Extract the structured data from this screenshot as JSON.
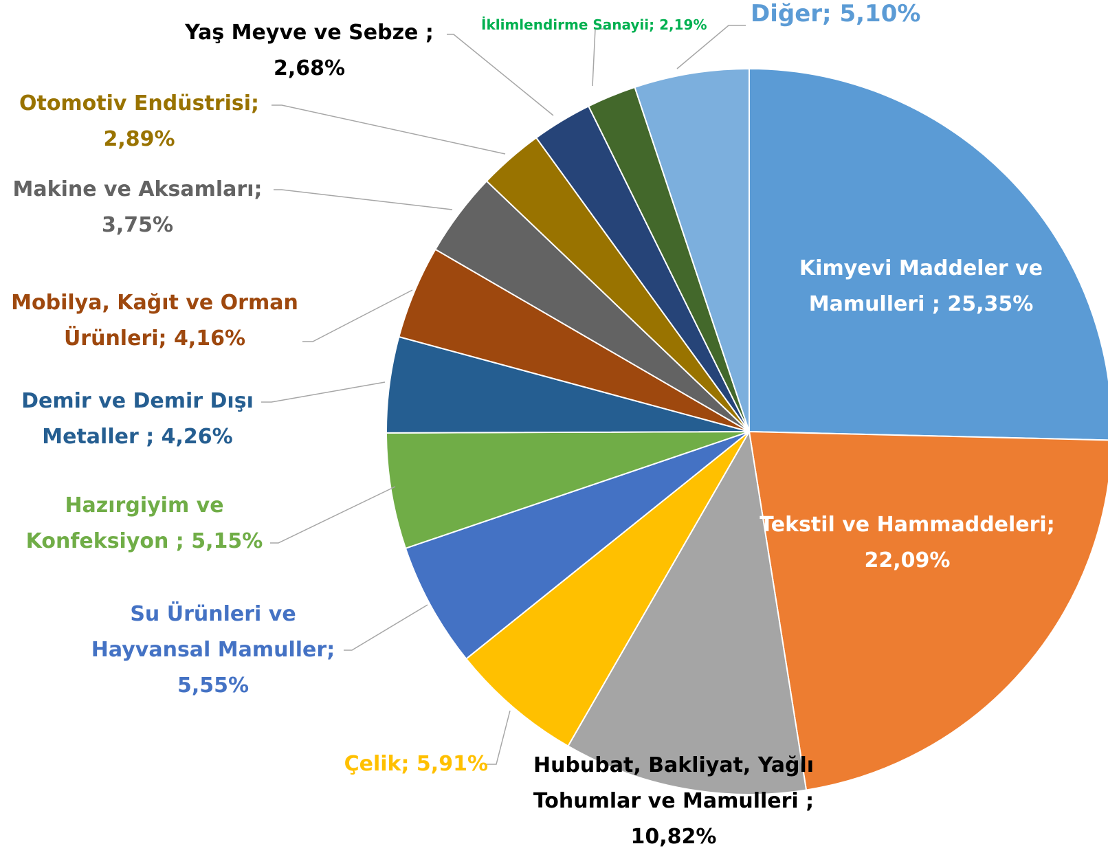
{
  "chart_data": {
    "type": "pie",
    "categories": [
      "Kimyevi Maddeler ve Mamulleri  ;",
      "Tekstil ve Hammaddeleri;",
      "Hububat, Bakliyat, Yağlı Tohumlar ve Mamulleri ;",
      "Çelik;",
      "Su Ürünleri ve Hayvansal Mamuller;",
      "Hazırgiyim ve Konfeksiyon ;",
      "Demir ve Demir Dışı Metaller ;",
      "Mobilya, Kağıt ve Orman Ürünleri;",
      "Makine ve Aksamları;",
      "Otomotiv Endüstrisi;",
      "Yaş Meyve ve Sebze  ;",
      "İklimlendirme Sanayii;",
      "Diğer;"
    ],
    "values": [
      25.35,
      22.09,
      10.82,
      5.91,
      5.55,
      5.15,
      4.26,
      4.16,
      3.75,
      2.89,
      2.68,
      2.19,
      5.1
    ],
    "value_labels": [
      "25,35%",
      "22,09%",
      "10,82%",
      "5,91%",
      "5,55%",
      "5,15%",
      "4,26%",
      "4,16%",
      "3,75%",
      "2,89%",
      "2,68%",
      "2,19%",
      "5,10%"
    ],
    "colors": [
      "#5b9bd5",
      "#ed7d31",
      "#a5a5a5",
      "#ffc000",
      "#4472c4",
      "#70ad47",
      "#255e91",
      "#9e480e",
      "#636363",
      "#997300",
      "#264478",
      "#43682b",
      "#7cafdd"
    ],
    "label_colors": [
      "#ffffff",
      "#ffffff",
      "#000000",
      "#ffc000",
      "#4472c4",
      "#70ad47",
      "#255e91",
      "#9e480e",
      "#636363",
      "#997300",
      "#000000",
      "#00b050",
      "#5b9bd5"
    ]
  }
}
